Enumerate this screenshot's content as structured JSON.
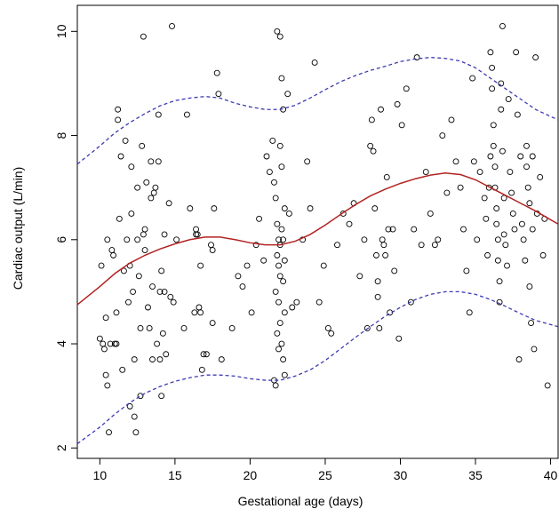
{
  "chart_data": {
    "type": "scatter",
    "title": "",
    "xlabel": "Gestational age (days)",
    "ylabel": "Cardiac output (L/min)",
    "xlim": [
      8.5,
      40.5
    ],
    "ylim": [
      1.8,
      10.5
    ],
    "x_ticks": [
      10,
      15,
      20,
      25,
      30,
      35,
      40
    ],
    "y_ticks": [
      2,
      4,
      6,
      8,
      10
    ],
    "grid": false,
    "colors": {
      "points": "#000000",
      "fit_line": "#b22222",
      "band_lines": "#3b3bb3",
      "axis": "#000000"
    },
    "points": [
      [
        10.0,
        4.1
      ],
      [
        10.1,
        5.5
      ],
      [
        10.2,
        4.0
      ],
      [
        10.3,
        3.9
      ],
      [
        10.4,
        3.4
      ],
      [
        10.5,
        3.2
      ],
      [
        10.4,
        4.5
      ],
      [
        10.5,
        6.0
      ],
      [
        10.6,
        2.3
      ],
      [
        10.7,
        4.0
      ],
      [
        10.8,
        5.8
      ],
      [
        10.9,
        5.7
      ],
      [
        11.0,
        4.0
      ],
      [
        11.1,
        4.6
      ],
      [
        11.1,
        4.0
      ],
      [
        11.2,
        8.5
      ],
      [
        11.2,
        8.3
      ],
      [
        11.3,
        6.4
      ],
      [
        11.4,
        7.6
      ],
      [
        11.5,
        3.5
      ],
      [
        11.6,
        5.4
      ],
      [
        11.7,
        7.9
      ],
      [
        11.8,
        6.0
      ],
      [
        11.9,
        4.8
      ],
      [
        12.0,
        5.5
      ],
      [
        12.0,
        2.8
      ],
      [
        12.1,
        6.5
      ],
      [
        12.1,
        7.4
      ],
      [
        12.2,
        5.0
      ],
      [
        12.3,
        3.7
      ],
      [
        12.3,
        2.6
      ],
      [
        12.4,
        2.3
      ],
      [
        12.5,
        6.0
      ],
      [
        12.5,
        7.0
      ],
      [
        12.6,
        5.3
      ],
      [
        12.7,
        4.3
      ],
      [
        12.7,
        3.0
      ],
      [
        12.8,
        7.8
      ],
      [
        12.9,
        9.9
      ],
      [
        12.9,
        6.1
      ],
      [
        13.0,
        6.2
      ],
      [
        13.0,
        5.8
      ],
      [
        13.1,
        7.1
      ],
      [
        13.2,
        4.7
      ],
      [
        13.3,
        4.3
      ],
      [
        13.4,
        6.8
      ],
      [
        13.4,
        7.5
      ],
      [
        13.5,
        3.7
      ],
      [
        13.5,
        5.1
      ],
      [
        13.6,
        6.9
      ],
      [
        13.7,
        7.0
      ],
      [
        13.8,
        4.0
      ],
      [
        13.9,
        8.4
      ],
      [
        13.9,
        7.5
      ],
      [
        14.0,
        5.0
      ],
      [
        14.0,
        3.7
      ],
      [
        14.1,
        5.4
      ],
      [
        14.1,
        3.0
      ],
      [
        14.2,
        4.2
      ],
      [
        14.3,
        6.1
      ],
      [
        14.3,
        5.0
      ],
      [
        14.4,
        3.8
      ],
      [
        14.6,
        6.7
      ],
      [
        14.7,
        4.9
      ],
      [
        14.8,
        10.1
      ],
      [
        14.9,
        4.8
      ],
      [
        15.1,
        6.0
      ],
      [
        15.6,
        4.3
      ],
      [
        15.8,
        8.4
      ],
      [
        16.0,
        6.6
      ],
      [
        16.3,
        4.6
      ],
      [
        16.4,
        6.2
      ],
      [
        16.4,
        6.1
      ],
      [
        16.5,
        6.1
      ],
      [
        16.6,
        4.7
      ],
      [
        16.7,
        4.6
      ],
      [
        16.7,
        5.5
      ],
      [
        16.8,
        3.5
      ],
      [
        16.9,
        3.8
      ],
      [
        17.1,
        3.8
      ],
      [
        17.4,
        5.9
      ],
      [
        17.5,
        5.8
      ],
      [
        17.5,
        4.4
      ],
      [
        17.6,
        6.6
      ],
      [
        17.8,
        9.2
      ],
      [
        17.9,
        8.8
      ],
      [
        18.1,
        3.7
      ],
      [
        18.8,
        4.3
      ],
      [
        19.2,
        5.3
      ],
      [
        19.5,
        5.1
      ],
      [
        19.8,
        5.5
      ],
      [
        20.1,
        4.6
      ],
      [
        20.4,
        5.9
      ],
      [
        20.6,
        6.4
      ],
      [
        20.9,
        5.6
      ],
      [
        21.1,
        7.6
      ],
      [
        21.3,
        7.3
      ],
      [
        21.5,
        7.9
      ],
      [
        21.6,
        7.1
      ],
      [
        21.7,
        6.8
      ],
      [
        21.8,
        6.3
      ],
      [
        21.9,
        6.0
      ],
      [
        22.0,
        5.9
      ],
      [
        21.8,
        5.7
      ],
      [
        21.9,
        5.5
      ],
      [
        22.0,
        5.3
      ],
      [
        21.7,
        5.0
      ],
      [
        21.9,
        4.8
      ],
      [
        22.0,
        4.4
      ],
      [
        21.8,
        4.2
      ],
      [
        21.9,
        3.9
      ],
      [
        21.6,
        3.3
      ],
      [
        21.7,
        3.2
      ],
      [
        21.8,
        10.0
      ],
      [
        22.0,
        9.9
      ],
      [
        22.1,
        9.1
      ],
      [
        22.2,
        8.5
      ],
      [
        22.0,
        7.8
      ],
      [
        22.1,
        7.4
      ],
      [
        22.3,
        6.6
      ],
      [
        22.1,
        6.2
      ],
      [
        22.2,
        6.0
      ],
      [
        22.3,
        5.6
      ],
      [
        22.2,
        5.2
      ],
      [
        22.3,
        4.6
      ],
      [
        22.1,
        4.0
      ],
      [
        22.2,
        3.7
      ],
      [
        22.3,
        3.4
      ],
      [
        22.5,
        8.8
      ],
      [
        22.6,
        6.5
      ],
      [
        22.8,
        4.7
      ],
      [
        23.1,
        4.8
      ],
      [
        23.5,
        6.0
      ],
      [
        23.8,
        7.5
      ],
      [
        24.0,
        6.6
      ],
      [
        24.3,
        9.4
      ],
      [
        24.6,
        4.8
      ],
      [
        24.9,
        5.5
      ],
      [
        25.2,
        4.3
      ],
      [
        25.4,
        4.2
      ],
      [
        25.8,
        5.9
      ],
      [
        26.2,
        6.5
      ],
      [
        26.6,
        6.3
      ],
      [
        26.9,
        6.7
      ],
      [
        27.3,
        5.3
      ],
      [
        27.6,
        6.0
      ],
      [
        27.8,
        4.3
      ],
      [
        28.0,
        7.8
      ],
      [
        28.1,
        8.3
      ],
      [
        28.2,
        7.7
      ],
      [
        28.3,
        6.6
      ],
      [
        28.4,
        5.7
      ],
      [
        28.5,
        5.2
      ],
      [
        28.5,
        4.9
      ],
      [
        28.6,
        4.3
      ],
      [
        28.7,
        8.5
      ],
      [
        28.8,
        6.0
      ],
      [
        28.9,
        5.9
      ],
      [
        29.0,
        5.7
      ],
      [
        29.1,
        7.2
      ],
      [
        29.2,
        6.2
      ],
      [
        29.3,
        4.6
      ],
      [
        29.5,
        6.2
      ],
      [
        29.6,
        5.4
      ],
      [
        29.8,
        8.6
      ],
      [
        29.9,
        4.1
      ],
      [
        30.1,
        8.2
      ],
      [
        30.4,
        8.9
      ],
      [
        30.7,
        4.8
      ],
      [
        30.9,
        6.2
      ],
      [
        31.1,
        9.5
      ],
      [
        31.4,
        5.9
      ],
      [
        31.7,
        7.3
      ],
      [
        32.0,
        6.5
      ],
      [
        32.3,
        5.9
      ],
      [
        32.5,
        6.0
      ],
      [
        32.8,
        8.0
      ],
      [
        33.1,
        6.9
      ],
      [
        33.4,
        8.3
      ],
      [
        33.7,
        7.5
      ],
      [
        34.0,
        7.0
      ],
      [
        34.2,
        6.2
      ],
      [
        34.4,
        5.4
      ],
      [
        34.6,
        4.6
      ],
      [
        34.8,
        9.1
      ],
      [
        34.9,
        7.5
      ],
      [
        35.1,
        6.0
      ],
      [
        35.3,
        7.3
      ],
      [
        35.6,
        6.8
      ],
      [
        35.7,
        6.4
      ],
      [
        35.8,
        5.7
      ],
      [
        35.9,
        7.0
      ],
      [
        36.0,
        7.6
      ],
      [
        36.0,
        9.6
      ],
      [
        36.1,
        9.3
      ],
      [
        36.1,
        8.9
      ],
      [
        36.2,
        8.2
      ],
      [
        36.2,
        7.8
      ],
      [
        36.3,
        7.4
      ],
      [
        36.3,
        7.0
      ],
      [
        36.4,
        6.6
      ],
      [
        36.4,
        6.3
      ],
      [
        36.5,
        6.0
      ],
      [
        36.5,
        5.6
      ],
      [
        36.6,
        5.2
      ],
      [
        36.6,
        4.8
      ],
      [
        36.7,
        9.0
      ],
      [
        36.7,
        8.5
      ],
      [
        36.8,
        10.1
      ],
      [
        36.8,
        7.7
      ],
      [
        36.9,
        6.8
      ],
      [
        36.9,
        6.1
      ],
      [
        37.0,
        5.9
      ],
      [
        37.1,
        5.5
      ],
      [
        37.2,
        8.7
      ],
      [
        37.3,
        7.3
      ],
      [
        37.4,
        6.9
      ],
      [
        37.5,
        6.5
      ],
      [
        37.6,
        6.2
      ],
      [
        37.7,
        9.6
      ],
      [
        37.8,
        8.4
      ],
      [
        37.9,
        3.7
      ],
      [
        38.0,
        7.6
      ],
      [
        38.1,
        6.3
      ],
      [
        38.2,
        6.0
      ],
      [
        38.3,
        5.6
      ],
      [
        38.4,
        7.8
      ],
      [
        38.4,
        7.4
      ],
      [
        38.5,
        7.0
      ],
      [
        38.6,
        6.7
      ],
      [
        38.6,
        5.1
      ],
      [
        38.7,
        4.4
      ],
      [
        38.8,
        7.6
      ],
      [
        38.8,
        6.2
      ],
      [
        38.9,
        3.9
      ],
      [
        39.0,
        9.5
      ],
      [
        39.1,
        6.5
      ],
      [
        39.3,
        7.2
      ],
      [
        39.5,
        5.7
      ],
      [
        39.6,
        6.4
      ],
      [
        39.8,
        3.2
      ]
    ],
    "fit_curve": [
      [
        8.5,
        4.75
      ],
      [
        10,
        5.1
      ],
      [
        11,
        5.35
      ],
      [
        12,
        5.55
      ],
      [
        13,
        5.7
      ],
      [
        14,
        5.82
      ],
      [
        15,
        5.92
      ],
      [
        16,
        6.0
      ],
      [
        17,
        6.05
      ],
      [
        18,
        6.05
      ],
      [
        19,
        6.0
      ],
      [
        20,
        5.94
      ],
      [
        21,
        5.9
      ],
      [
        22,
        5.9
      ],
      [
        23,
        5.97
      ],
      [
        24,
        6.1
      ],
      [
        25,
        6.28
      ],
      [
        26,
        6.48
      ],
      [
        27,
        6.67
      ],
      [
        28,
        6.84
      ],
      [
        29,
        6.97
      ],
      [
        30,
        7.08
      ],
      [
        31,
        7.17
      ],
      [
        32,
        7.24
      ],
      [
        33,
        7.28
      ],
      [
        34,
        7.25
      ],
      [
        35,
        7.15
      ],
      [
        36,
        7.0
      ],
      [
        37,
        6.85
      ],
      [
        38,
        6.7
      ],
      [
        39,
        6.55
      ],
      [
        40.5,
        6.3
      ]
    ],
    "upper_band": [
      [
        8.5,
        7.45
      ],
      [
        10,
        7.8
      ],
      [
        11,
        8.05
      ],
      [
        12,
        8.25
      ],
      [
        13,
        8.42
      ],
      [
        14,
        8.57
      ],
      [
        15,
        8.67
      ],
      [
        16,
        8.72
      ],
      [
        17,
        8.75
      ],
      [
        18,
        8.72
      ],
      [
        19,
        8.62
      ],
      [
        20,
        8.55
      ],
      [
        21,
        8.5
      ],
      [
        22,
        8.5
      ],
      [
        23,
        8.58
      ],
      [
        24,
        8.72
      ],
      [
        25,
        8.88
      ],
      [
        26,
        9.03
      ],
      [
        27,
        9.15
      ],
      [
        28,
        9.25
      ],
      [
        29,
        9.33
      ],
      [
        30,
        9.42
      ],
      [
        31,
        9.47
      ],
      [
        32,
        9.5
      ],
      [
        33,
        9.48
      ],
      [
        34,
        9.43
      ],
      [
        35,
        9.3
      ],
      [
        36,
        9.1
      ],
      [
        37,
        8.9
      ],
      [
        38,
        8.7
      ],
      [
        39,
        8.5
      ],
      [
        40.5,
        8.3
      ]
    ],
    "lower_band": [
      [
        8.5,
        2.08
      ],
      [
        10,
        2.4
      ],
      [
        11,
        2.65
      ],
      [
        12,
        2.87
      ],
      [
        13,
        3.05
      ],
      [
        14,
        3.18
      ],
      [
        15,
        3.28
      ],
      [
        16,
        3.35
      ],
      [
        17,
        3.4
      ],
      [
        18,
        3.4
      ],
      [
        19,
        3.38
      ],
      [
        20,
        3.33
      ],
      [
        21,
        3.3
      ],
      [
        22,
        3.3
      ],
      [
        23,
        3.38
      ],
      [
        24,
        3.5
      ],
      [
        25,
        3.68
      ],
      [
        26,
        3.9
      ],
      [
        27,
        4.12
      ],
      [
        28,
        4.33
      ],
      [
        29,
        4.53
      ],
      [
        30,
        4.7
      ],
      [
        31,
        4.85
      ],
      [
        32,
        4.95
      ],
      [
        33,
        5.0
      ],
      [
        34,
        5.0
      ],
      [
        35,
        4.95
      ],
      [
        36,
        4.85
      ],
      [
        37,
        4.72
      ],
      [
        38,
        4.58
      ],
      [
        39,
        4.45
      ],
      [
        40.5,
        4.33
      ]
    ]
  }
}
